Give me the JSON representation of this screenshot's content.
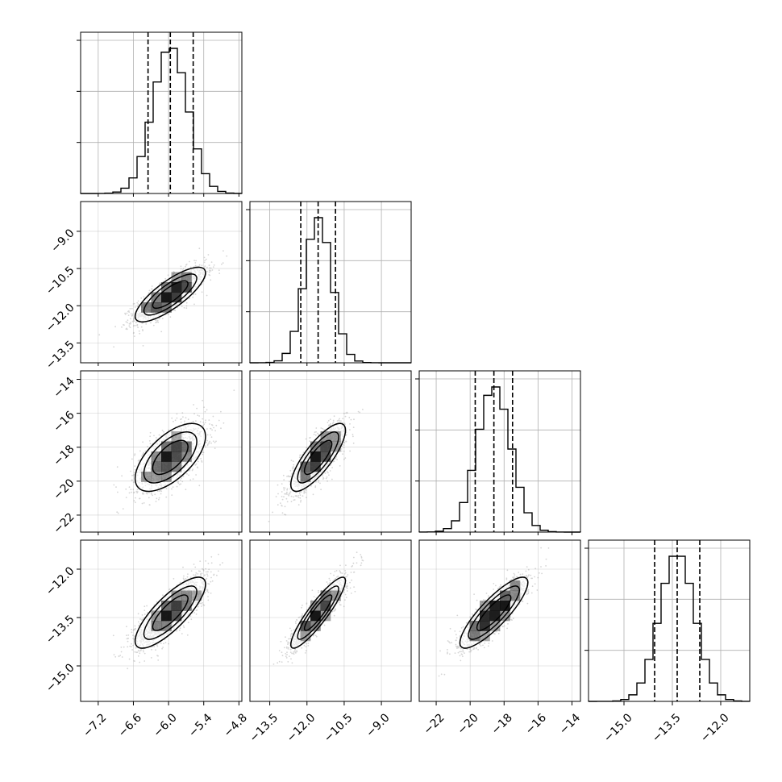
{
  "chart_data": {
    "type": "corner",
    "n_params": 4,
    "grid": true,
    "colors": {
      "line": "#000000",
      "grid": "#b0b0b0",
      "density": "#000000"
    },
    "params": [
      {
        "index": 0,
        "range": [
          -7.5,
          -4.75
        ],
        "ticks": [
          -7.2,
          -6.6,
          -6.0,
          -5.4,
          -4.8
        ],
        "tick_labels": [
          "−7.2",
          "−6.6",
          "−6.0",
          "−5.4",
          "−4.8"
        ],
        "mean": -5.97,
        "sd": 0.3,
        "quantiles": [
          -6.35,
          -5.97,
          -5.58
        ]
      },
      {
        "index": 1,
        "range": [
          -14.3,
          -7.8
        ],
        "ticks": [
          -13.5,
          -12.0,
          -10.5,
          -9.0
        ],
        "tick_labels": [
          "−13.5",
          "−12.0",
          "−10.5",
          "−9.0"
        ],
        "mean": -11.55,
        "sd": 0.55,
        "quantiles": [
          -12.25,
          -11.55,
          -10.85
        ]
      },
      {
        "index": 2,
        "range": [
          -23.0,
          -13.5
        ],
        "ticks": [
          -22,
          -20,
          -18,
          -16,
          -14
        ],
        "tick_labels": [
          "−22",
          "−20",
          "−18",
          "−16",
          "−14"
        ],
        "mean": -18.6,
        "sd": 1.0,
        "quantiles": [
          -19.7,
          -18.6,
          -17.5
        ]
      },
      {
        "index": 3,
        "range": [
          -16.1,
          -11.1
        ],
        "ticks": [
          -15.0,
          -13.5,
          -12.0
        ],
        "tick_labels": [
          "−15.0",
          "−13.5",
          "−12.0"
        ],
        "mean": -13.35,
        "sd": 0.55,
        "quantiles": [
          -14.05,
          -13.35,
          -12.65
        ]
      }
    ],
    "correlations": [
      {
        "i": 1,
        "j": 0,
        "rho": 0.8
      },
      {
        "i": 2,
        "j": 0,
        "rho": 0.62
      },
      {
        "i": 2,
        "j": 1,
        "rho": 0.8
      },
      {
        "i": 3,
        "j": 0,
        "rho": 0.8
      },
      {
        "i": 3,
        "j": 1,
        "rho": 0.9
      },
      {
        "i": 3,
        "j": 2,
        "rho": 0.85
      }
    ],
    "contour_levels_sigma": [
      1.0,
      1.5,
      2.0
    ],
    "histogram_bins": 20
  }
}
